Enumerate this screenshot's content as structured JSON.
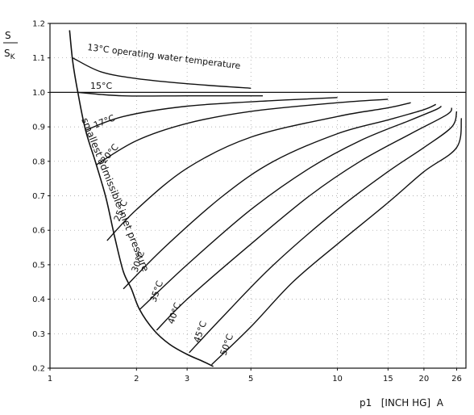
{
  "chart_data": {
    "type": "line",
    "x_scale": "log",
    "grid": true,
    "xlabel": "p1   [INCH HG]  A",
    "ylabel_top": "S",
    "ylabel_sub": "S",
    "ylabel_subscript": "K",
    "xlim": [
      1,
      28
    ],
    "ylim": [
      0.2,
      1.2
    ],
    "x_ticks": [
      1,
      2,
      3,
      5,
      10,
      15,
      20,
      26
    ],
    "x_tick_labels": [
      "1",
      "2",
      "3",
      "5",
      "10",
      "15",
      "20",
      "26"
    ],
    "y_ticks": [
      0.2,
      0.3,
      0.4,
      0.5,
      0.6,
      0.7,
      0.8,
      0.9,
      1.0,
      1.1,
      1.2
    ],
    "y_tick_labels": [
      "0.2",
      "0.3",
      "0.4",
      "0.5",
      "0.6",
      "0.7",
      "0.8",
      "0.9",
      "1.0",
      "1.1",
      "1.2"
    ],
    "reference_line": {
      "y": 1.0
    },
    "boundary_curve": {
      "label": "smallest admissible inlet pressure",
      "points": [
        [
          1.17,
          1.18
        ],
        [
          1.2,
          1.09
        ],
        [
          1.25,
          1.0
        ],
        [
          1.33,
          0.89
        ],
        [
          1.45,
          0.79
        ],
        [
          1.57,
          0.69
        ],
        [
          1.68,
          0.58
        ],
        [
          1.8,
          0.48
        ],
        [
          1.92,
          0.43
        ],
        [
          2.05,
          0.37
        ],
        [
          2.3,
          0.31
        ],
        [
          2.6,
          0.27
        ],
        [
          3.0,
          0.24
        ],
        [
          3.4,
          0.22
        ],
        [
          3.7,
          0.205
        ]
      ]
    },
    "series": [
      {
        "name": "13°C operating water temperature",
        "points": [
          [
            1.2,
            1.1
          ],
          [
            1.5,
            1.06
          ],
          [
            2,
            1.04
          ],
          [
            3,
            1.025
          ],
          [
            5,
            1.012
          ]
        ]
      },
      {
        "name": "15°C",
        "points": [
          [
            1.25,
            1.0
          ],
          [
            1.8,
            0.99
          ],
          [
            3,
            0.99
          ],
          [
            5.5,
            0.99
          ]
        ]
      },
      {
        "name": "17°C",
        "points": [
          [
            1.33,
            0.89
          ],
          [
            1.8,
            0.93
          ],
          [
            3,
            0.96
          ],
          [
            6,
            0.976
          ],
          [
            10,
            0.985
          ]
        ]
      },
      {
        "name": "20°C",
        "points": [
          [
            1.45,
            0.79
          ],
          [
            2,
            0.86
          ],
          [
            3,
            0.91
          ],
          [
            5,
            0.945
          ],
          [
            10,
            0.97
          ],
          [
            15,
            0.98
          ]
        ]
      },
      {
        "name": "25°C",
        "points": [
          [
            1.58,
            0.57
          ],
          [
            2,
            0.66
          ],
          [
            3,
            0.78
          ],
          [
            5,
            0.87
          ],
          [
            10,
            0.93
          ],
          [
            15,
            0.955
          ],
          [
            18,
            0.97
          ]
        ]
      },
      {
        "name": "30°C",
        "points": [
          [
            1.8,
            0.43
          ],
          [
            2.5,
            0.55
          ],
          [
            4,
            0.7
          ],
          [
            6,
            0.8
          ],
          [
            10,
            0.88
          ],
          [
            15,
            0.92
          ],
          [
            20,
            0.95
          ],
          [
            22,
            0.965
          ]
        ]
      },
      {
        "name": "35°C",
        "points": [
          [
            2.05,
            0.37
          ],
          [
            3,
            0.5
          ],
          [
            5,
            0.66
          ],
          [
            8,
            0.78
          ],
          [
            12,
            0.86
          ],
          [
            18,
            0.92
          ],
          [
            22,
            0.95
          ],
          [
            23,
            0.96
          ]
        ]
      },
      {
        "name": "40°C",
        "points": [
          [
            2.35,
            0.31
          ],
          [
            3,
            0.4
          ],
          [
            5,
            0.56
          ],
          [
            8,
            0.7
          ],
          [
            12,
            0.8
          ],
          [
            18,
            0.88
          ],
          [
            24,
            0.935
          ],
          [
            25,
            0.955
          ]
        ]
      },
      {
        "name": "45°C",
        "points": [
          [
            3.05,
            0.245
          ],
          [
            4,
            0.35
          ],
          [
            6,
            0.5
          ],
          [
            10,
            0.66
          ],
          [
            15,
            0.77
          ],
          [
            20,
            0.84
          ],
          [
            25,
            0.9
          ],
          [
            26,
            0.945
          ]
        ]
      },
      {
        "name": "50°C",
        "points": [
          [
            3.65,
            0.21
          ],
          [
            5,
            0.32
          ],
          [
            7,
            0.45
          ],
          [
            10,
            0.56
          ],
          [
            15,
            0.68
          ],
          [
            20,
            0.77
          ],
          [
            26,
            0.84
          ],
          [
            27,
            0.925
          ]
        ]
      }
    ]
  }
}
